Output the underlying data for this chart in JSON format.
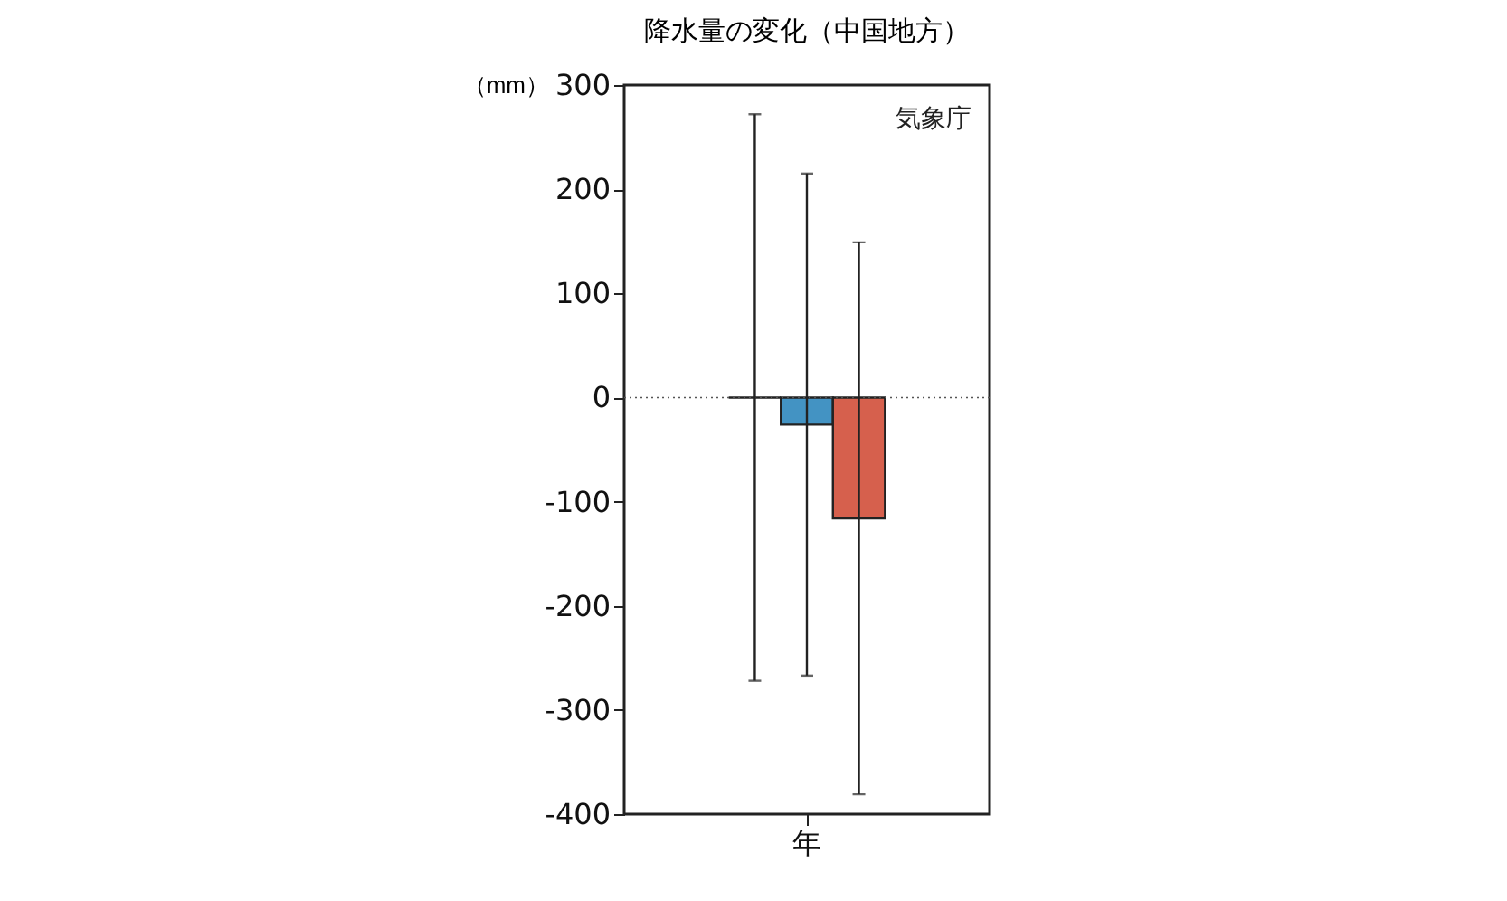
{
  "chart_data": {
    "type": "bar",
    "title": "降水量の変化（中国地方）",
    "ylabel": "（mm）",
    "categories": [
      "年"
    ],
    "series": [
      {
        "values": [
          0
        ],
        "errors": [
          272
        ]
      },
      {
        "color": "#4393c3",
        "values": [
          -26
        ],
        "errors": [
          241
        ]
      },
      {
        "color": "#d6604d",
        "values": [
          -116
        ],
        "errors": [
          265
        ]
      }
    ],
    "ylim": [
      -400,
      300
    ],
    "yticks": [
      -400,
      -300,
      -200,
      -100,
      0,
      100,
      200,
      300
    ],
    "ref_lines": [
      {
        "axis": "y",
        "value": 0,
        "line_style": "dotted",
        "color": "#555555"
      }
    ],
    "annotations": [
      "気象庁"
    ],
    "grid": false
  }
}
